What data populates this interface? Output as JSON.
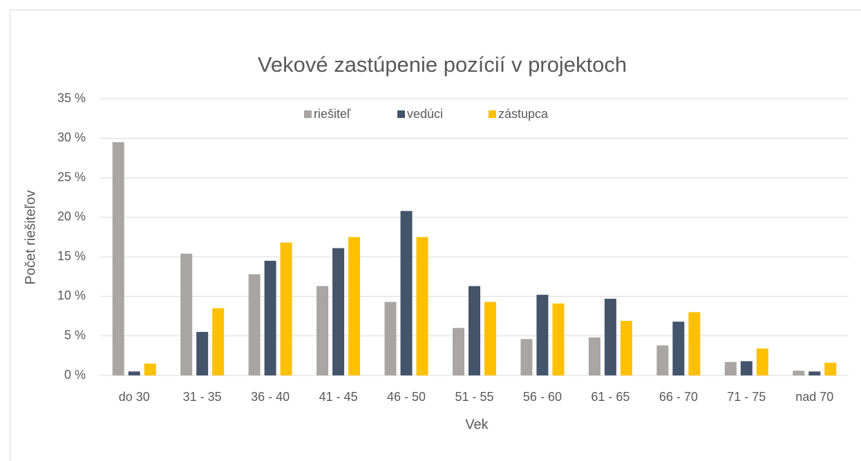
{
  "chart_data": {
    "type": "bar",
    "title": "Vekové zastúpenie pozícií v projektoch",
    "x_label": "Vek",
    "y_label": "Počet riešiteľov",
    "categories": [
      "do 30",
      "31 - 35",
      "36 - 40",
      "41 - 45",
      "46 - 50",
      "51 - 55",
      "56 - 60",
      "61 - 65",
      "66 - 70",
      "71 - 75",
      "nad 70"
    ],
    "series": [
      {
        "name": "riešiteľ",
        "color": "#a9a5a4",
        "values": [
          29.5,
          15.4,
          12.8,
          11.3,
          9.3,
          6.0,
          4.6,
          4.8,
          3.8,
          1.7,
          0.6
        ]
      },
      {
        "name": "vedúci",
        "color": "#44546a",
        "values": [
          0.5,
          5.5,
          14.5,
          16.1,
          20.8,
          11.3,
          10.2,
          9.7,
          6.8,
          1.8,
          0.5
        ]
      },
      {
        "name": "zástupca",
        "color": "#ffc000",
        "values": [
          1.5,
          8.5,
          16.8,
          17.5,
          17.5,
          9.3,
          9.1,
          6.9,
          8.0,
          3.4,
          1.6
        ]
      }
    ],
    "ylim": [
      0,
      35
    ],
    "yticks": [
      {
        "value": 0,
        "label": "0 %"
      },
      {
        "value": 5,
        "label": "5 %"
      },
      {
        "value": 10,
        "label": "10 %"
      },
      {
        "value": 15,
        "label": "15 %"
      },
      {
        "value": 20,
        "label": "20 %"
      },
      {
        "value": 25,
        "label": "25 %"
      },
      {
        "value": 30,
        "label": "30 %"
      },
      {
        "value": 35,
        "label": "35 %"
      }
    ],
    "grid": true,
    "legend": "top"
  }
}
